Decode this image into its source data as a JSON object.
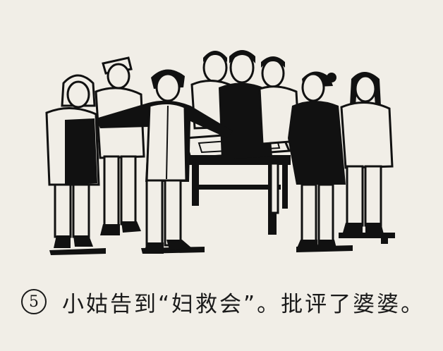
{
  "panel": {
    "number": "5",
    "caption": "小姑告到“妇救会”。批评了婆婆。"
  },
  "illustration": {
    "style": "black-ink woodcut",
    "colors": {
      "ink": "#111111",
      "paper": "#f1eee7"
    }
  }
}
